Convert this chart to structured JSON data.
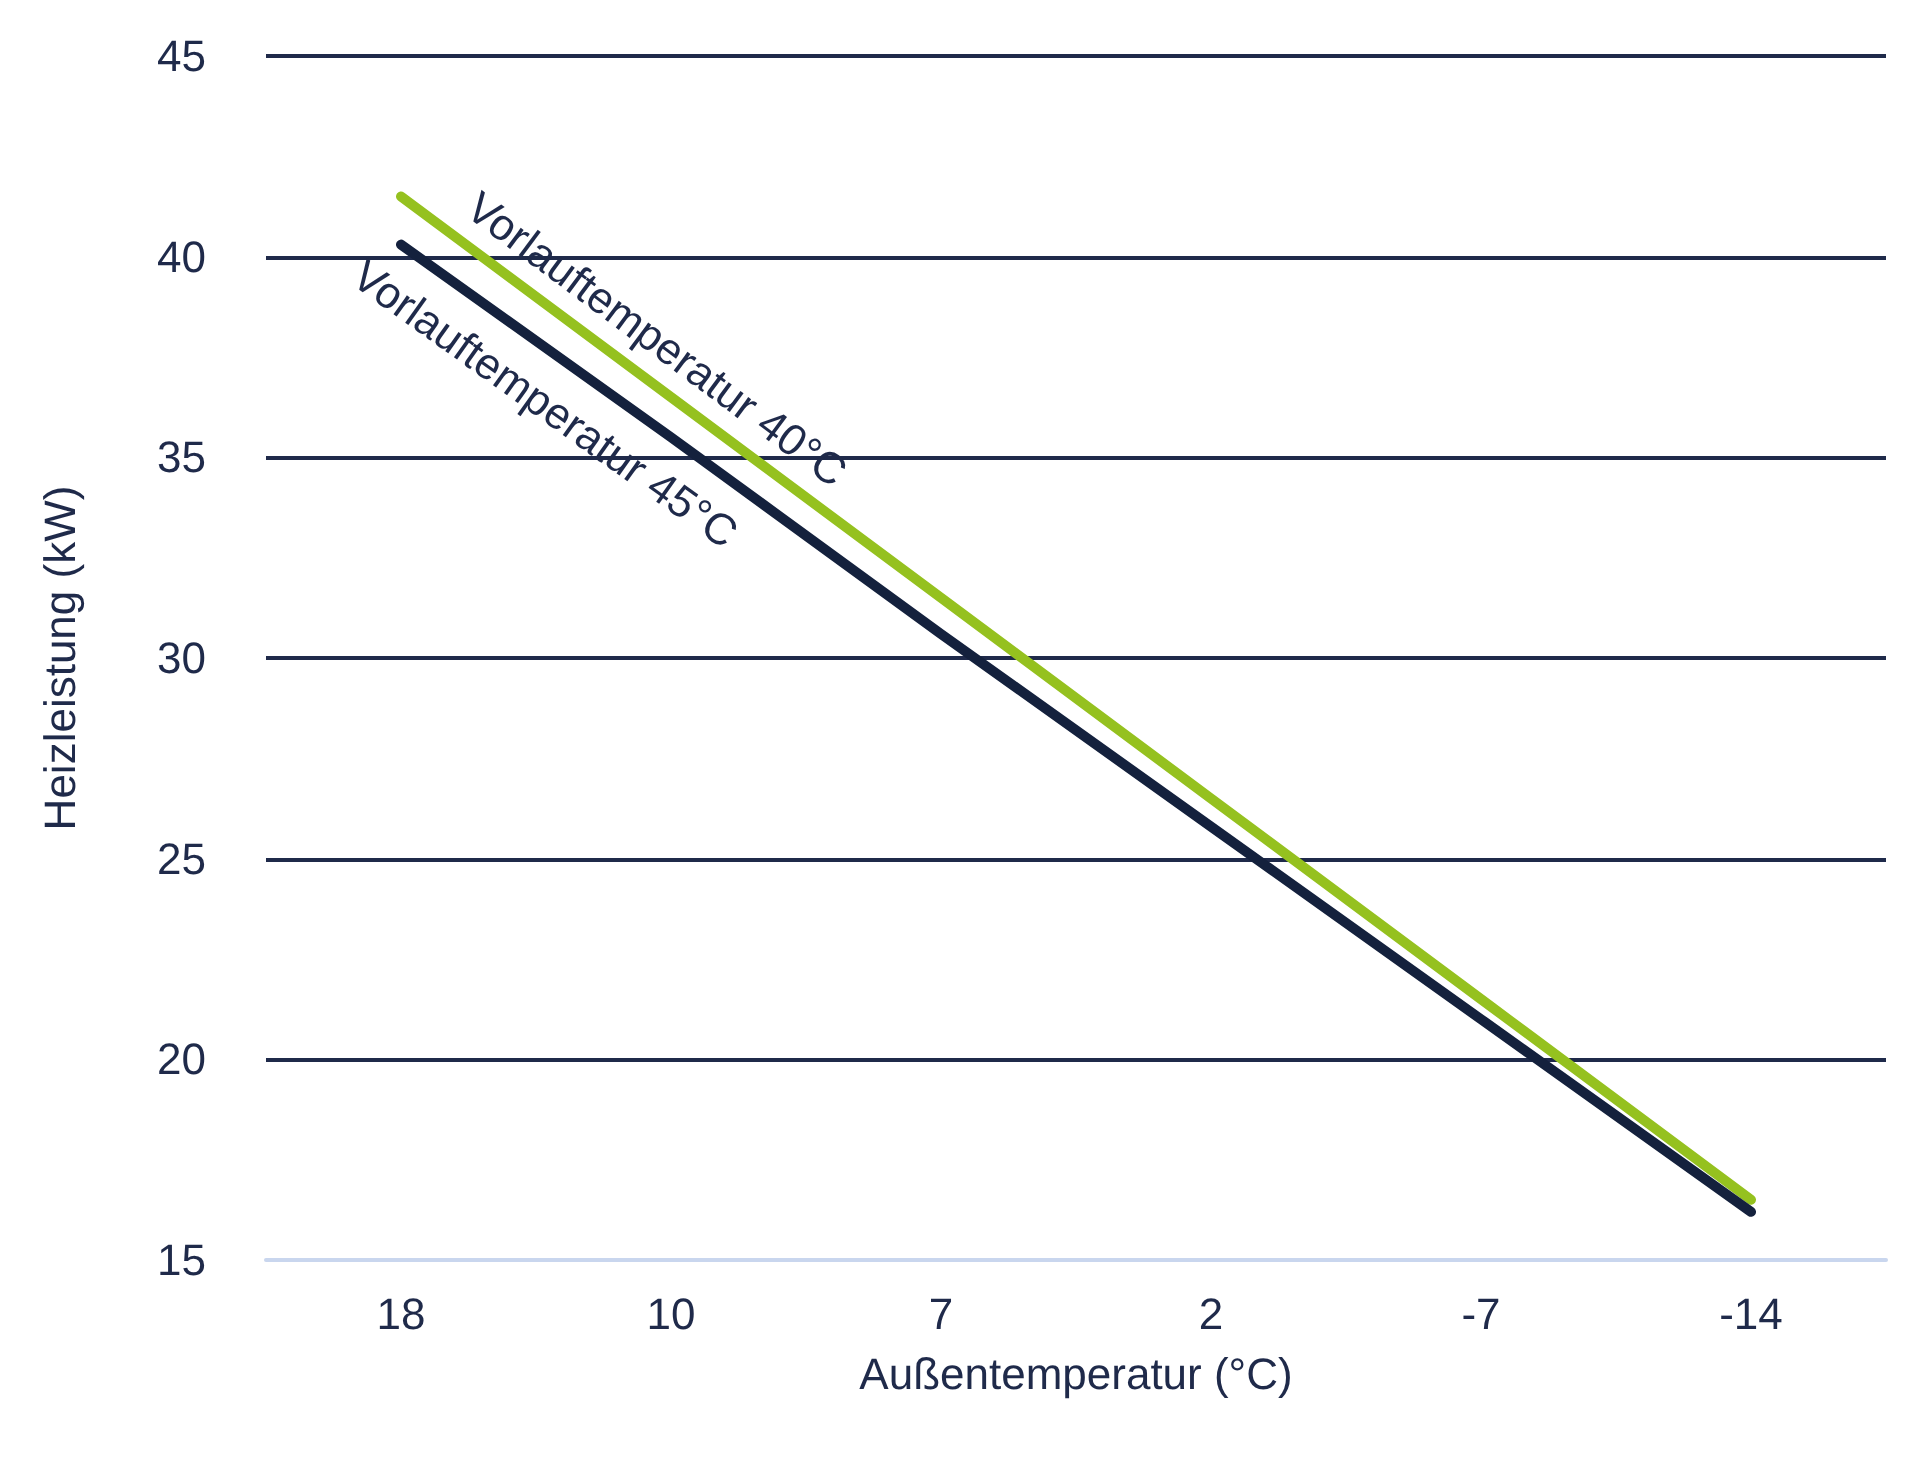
{
  "chart_data": {
    "type": "line",
    "xlabel": "Außentemperatur (°C)",
    "ylabel": "Heizleistung (kW)",
    "categories": [
      "18",
      "10",
      "7",
      "2",
      "-7",
      "-14"
    ],
    "series": [
      {
        "name": "Vorlauftemperatur 40°C",
        "color": "#95c11f",
        "values": [
          41.5,
          36.5,
          31.5,
          26.5,
          21.5,
          16.5
        ]
      },
      {
        "name": "Vorlauftemperatur 45°C",
        "color": "#14213d",
        "values": [
          40.3,
          35.5,
          30.6,
          25.8,
          21.0,
          16.2
        ]
      }
    ],
    "ylim": [
      15,
      45
    ],
    "yticks": [
      15,
      20,
      25,
      30,
      35,
      40,
      45
    ],
    "grid": "y",
    "legend": false,
    "marker": "none",
    "line_style": "solid"
  }
}
